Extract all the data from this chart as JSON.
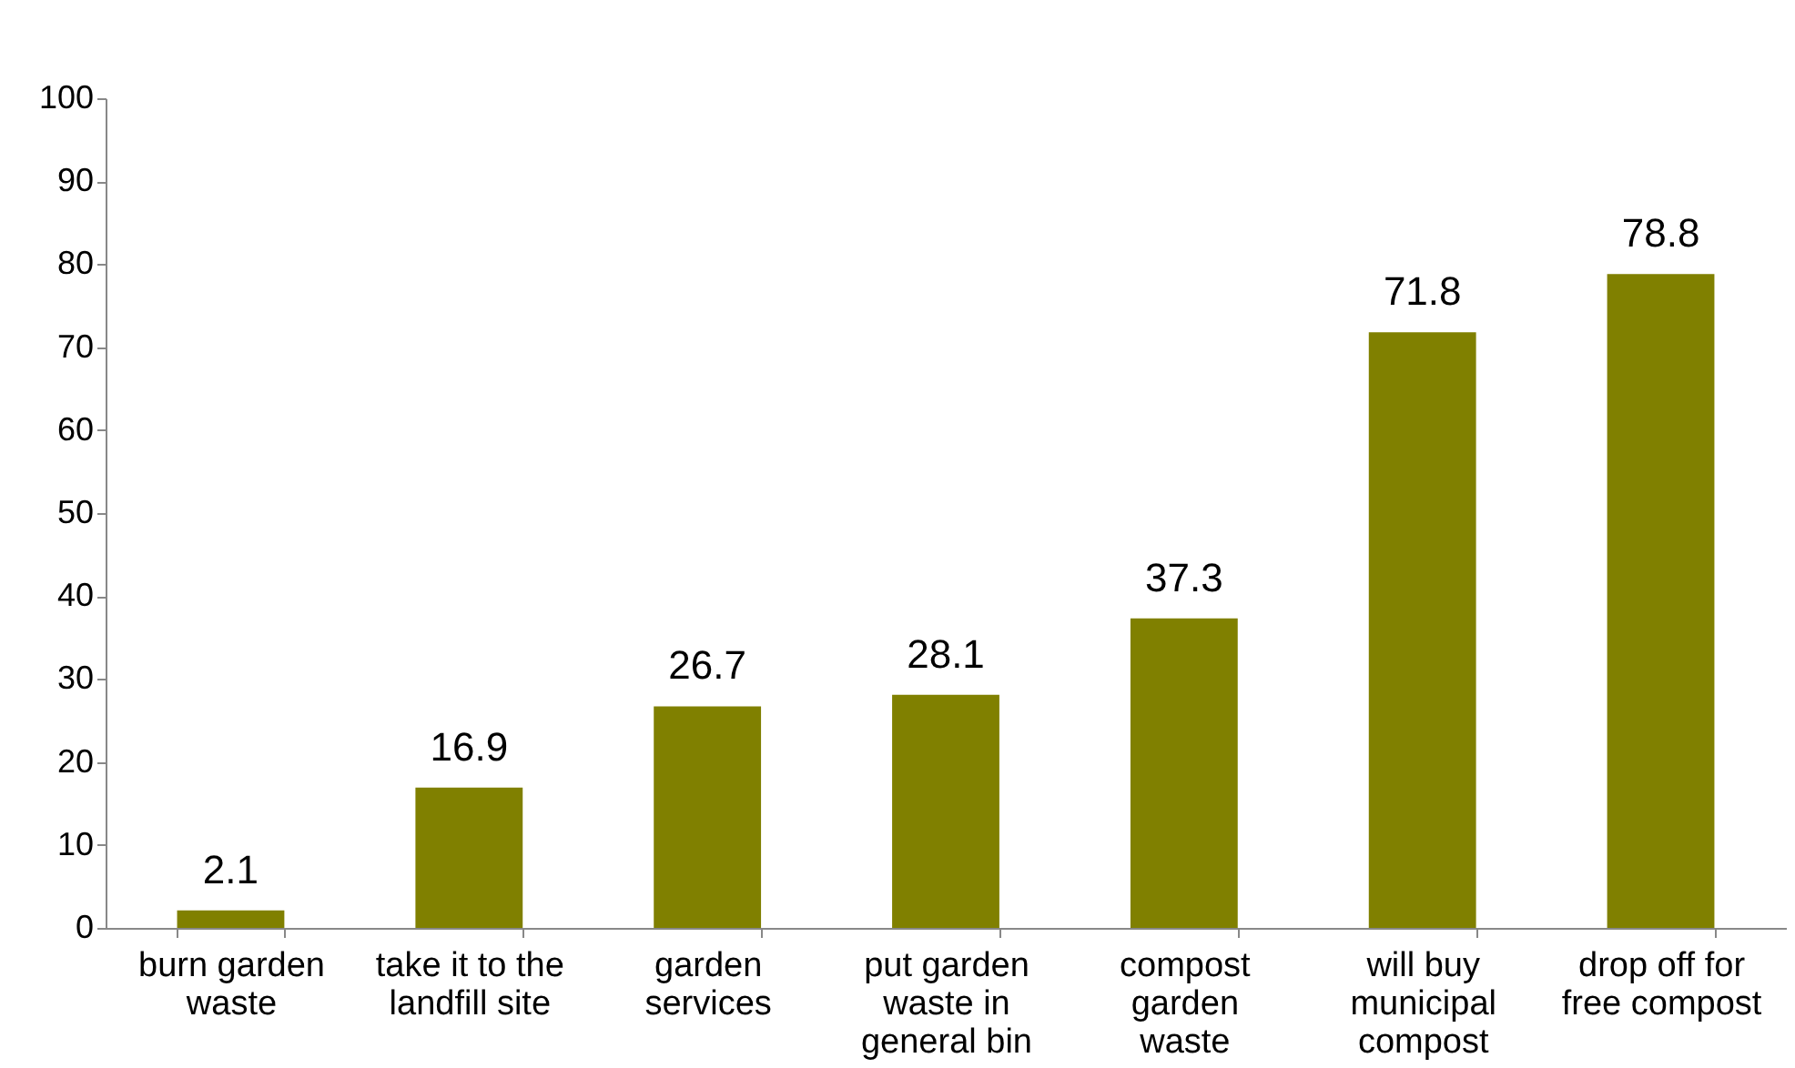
{
  "chart_data": {
    "type": "bar",
    "categories": [
      "burn garden\nwaste",
      "take it to the\nlandfill site",
      "garden\nservices",
      "put garden\nwaste in\ngeneral bin",
      "compost\ngarden\nwaste",
      "will buy\nmunicipal\ncompost",
      "drop off for\nfree compost"
    ],
    "values": [
      2.1,
      16.9,
      26.7,
      28.1,
      37.3,
      71.8,
      78.8
    ],
    "color": "#808000",
    "ylim": [
      0,
      100
    ],
    "yticks": [
      0,
      10,
      20,
      30,
      40,
      50,
      60,
      70,
      80,
      90,
      100
    ],
    "grid": false,
    "data_labels": true
  }
}
